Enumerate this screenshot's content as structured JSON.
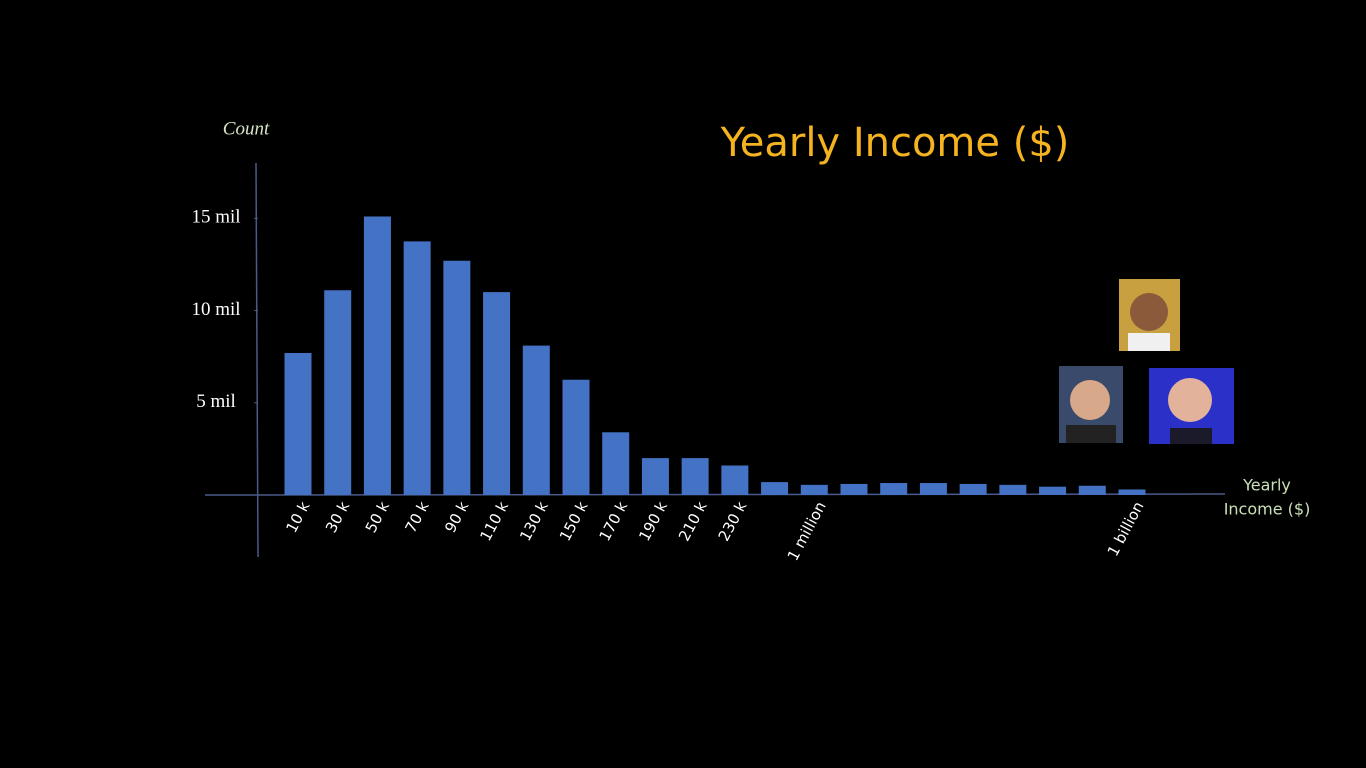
{
  "chart_data": {
    "type": "bar",
    "title": "Yearly Income ($)",
    "y_label": "Count",
    "x_label": [
      "Yearly",
      "Income ($)"
    ],
    "categories": [
      "10 k",
      "30 k",
      "50 k",
      "70 k",
      "90 k",
      "110 k",
      "130 k",
      "150 k",
      "170 k",
      "190 k",
      "210 k",
      "230 k",
      null,
      "1 million",
      null,
      null,
      null,
      null,
      null,
      null,
      null,
      "1 billion"
    ],
    "values": [
      7.7,
      11.1,
      15.1,
      13.75,
      12.7,
      11.0,
      8.1,
      6.25,
      3.4,
      2.0,
      2.0,
      1.6,
      0.7,
      0.55,
      0.6,
      0.65,
      0.65,
      0.6,
      0.55,
      0.45,
      0.5,
      0.3
    ],
    "color": "#4472c4",
    "ylim": [
      0,
      18
    ],
    "yticks": [
      {
        "value": 5,
        "label": "5 mil"
      },
      {
        "value": 10,
        "label": "10 mil"
      },
      {
        "value": 15,
        "label": "15 mil"
      }
    ],
    "grid": false
  }
}
